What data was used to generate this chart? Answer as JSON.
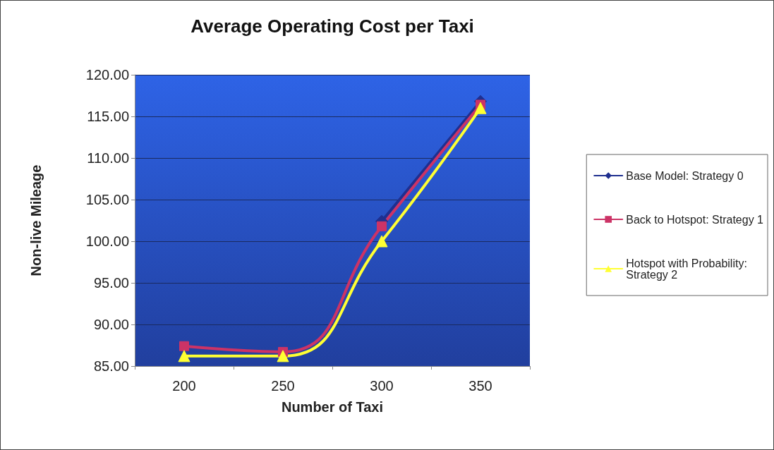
{
  "chart_data": {
    "type": "line",
    "title": "Average Operating Cost per Taxi",
    "xlabel": "Number of Taxi",
    "ylabel": "Non-live Mileage",
    "categories": [
      "200",
      "250",
      "300",
      "350"
    ],
    "series": [
      {
        "name": "Base Model: Strategy 0",
        "color": "#1f2f8f",
        "marker": "diamond",
        "values": [
          null,
          null,
          102.4,
          116.8
        ]
      },
      {
        "name": "Back to Hotspot: Strategy 1",
        "color": "#cc3366",
        "marker": "square",
        "values": [
          87.4,
          86.7,
          101.8,
          116.4
        ]
      },
      {
        "name": "Hotspot with Probability: Strategy 2",
        "color": "#ffff33",
        "marker": "triangle",
        "values": [
          86.2,
          86.2,
          100.0,
          116.0
        ]
      }
    ],
    "ylim": [
      85,
      120
    ],
    "yticks": [
      {
        "value": 85,
        "label": "85.00"
      },
      {
        "value": 90,
        "label": "90.00"
      },
      {
        "value": 95,
        "label": "95.00"
      },
      {
        "value": 100,
        "label": "100.00"
      },
      {
        "value": 105,
        "label": "105.00"
      },
      {
        "value": 110,
        "label": "110.00"
      },
      {
        "value": 115,
        "label": "115.00"
      },
      {
        "value": 120,
        "label": "120.00"
      }
    ],
    "grid": "y",
    "legend": "right",
    "line_style": "solid"
  }
}
